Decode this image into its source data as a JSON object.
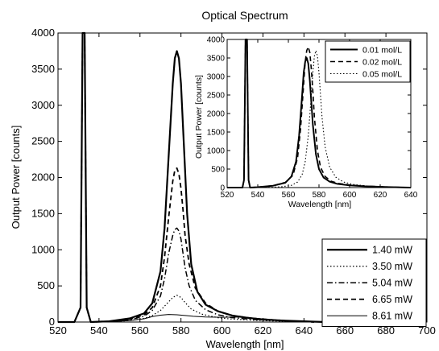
{
  "chart_data": [
    {
      "type": "line",
      "title": "Optical Spectrum",
      "xlabel": "Wavelength [nm]",
      "ylabel": "Output Power [counts]",
      "xlim": [
        520,
        700
      ],
      "ylim": [
        0,
        4000
      ],
      "xticks": [
        520,
        540,
        560,
        580,
        600,
        620,
        640,
        660,
        680,
        700
      ],
      "yticks": [
        0,
        500,
        1000,
        1500,
        2000,
        2500,
        3000,
        3500,
        4000
      ],
      "grid": false,
      "legend_position": "bottom-right",
      "series": [
        {
          "name": "1.40 mW",
          "style": "solid-thick",
          "x": [
            520,
            528,
            531,
            532,
            533,
            534,
            536,
            545,
            555,
            562,
            566,
            570,
            572,
            574,
            576,
            577,
            578,
            579,
            580,
            581,
            582,
            583,
            585,
            588,
            592,
            598,
            605,
            612,
            620,
            630,
            640,
            650
          ],
          "y": [
            0,
            0,
            200,
            4000,
            4000,
            200,
            0,
            10,
            50,
            120,
            260,
            700,
            1300,
            2300,
            3300,
            3650,
            3750,
            3650,
            3300,
            2700,
            2100,
            1500,
            800,
            420,
            240,
            150,
            90,
            60,
            35,
            20,
            10,
            0
          ]
        },
        {
          "name": "3.50 mW",
          "style": "dotted",
          "x": [
            520,
            528,
            531,
            532,
            533,
            534,
            536,
            545,
            555,
            562,
            566,
            570,
            574,
            576,
            578,
            580,
            582,
            585,
            590,
            598,
            605,
            615,
            630,
            645
          ],
          "y": [
            0,
            0,
            200,
            4000,
            4000,
            200,
            0,
            5,
            20,
            50,
            90,
            160,
            280,
            340,
            370,
            340,
            270,
            180,
            110,
            60,
            40,
            25,
            10,
            0
          ]
        },
        {
          "name": "5.04 mW",
          "style": "dash-dot",
          "x": [
            520,
            528,
            531,
            532,
            533,
            534,
            536,
            545,
            555,
            562,
            566,
            570,
            572,
            574,
            576,
            577,
            578,
            579,
            580,
            581,
            582,
            584,
            587,
            592,
            598,
            605,
            615,
            630,
            645
          ],
          "y": [
            0,
            0,
            200,
            4000,
            4000,
            200,
            0,
            5,
            30,
            80,
            160,
            360,
            600,
            950,
            1200,
            1280,
            1300,
            1260,
            1150,
            950,
            750,
            500,
            300,
            170,
            100,
            60,
            35,
            15,
            0
          ]
        },
        {
          "name": "6.65 mW",
          "style": "dashed",
          "x": [
            520,
            528,
            531,
            532,
            533,
            534,
            536,
            545,
            555,
            562,
            566,
            570,
            572,
            574,
            576,
            577,
            578,
            579,
            580,
            581,
            582,
            584,
            587,
            592,
            598,
            605,
            615,
            630,
            645
          ],
          "y": [
            0,
            0,
            200,
            4000,
            4000,
            200,
            0,
            8,
            40,
            100,
            200,
            500,
            900,
            1450,
            1950,
            2100,
            2130,
            2050,
            1850,
            1550,
            1200,
            800,
            470,
            260,
            150,
            90,
            50,
            20,
            0
          ]
        },
        {
          "name": "8.61 mW",
          "style": "solid-thin",
          "x": [
            520,
            528,
            531,
            532,
            533,
            534,
            536,
            545,
            555,
            562,
            566,
            570,
            574,
            578,
            582,
            586,
            592,
            600,
            608,
            615,
            625,
            640,
            660,
            680,
            700
          ],
          "y": [
            0,
            0,
            200,
            4000,
            4000,
            200,
            0,
            5,
            20,
            45,
            75,
            95,
            105,
            100,
            90,
            80,
            70,
            65,
            70,
            55,
            30,
            10,
            0,
            0,
            0
          ]
        }
      ]
    },
    {
      "type": "line",
      "title": "",
      "xlabel": "Wavelength [nm]",
      "ylabel": "Output Power [counts]",
      "xlim": [
        520,
        640
      ],
      "ylim": [
        0,
        4000
      ],
      "xticks": [
        520,
        540,
        560,
        580,
        600,
        620,
        640
      ],
      "yticks": [
        0,
        500,
        1000,
        1500,
        2000,
        2500,
        3000,
        3500,
        4000
      ],
      "grid": false,
      "legend_position": "top-right",
      "series": [
        {
          "name": "0.01 mol/L",
          "style": "solid-thick",
          "x": [
            520,
            530,
            531,
            532,
            533,
            534,
            535,
            540,
            550,
            558,
            562,
            565,
            567,
            569,
            570,
            571,
            572,
            573,
            574,
            575,
            576,
            578,
            580,
            583,
            587,
            592,
            600,
            610,
            625,
            640
          ],
          "y": [
            0,
            0,
            200,
            4000,
            4000,
            200,
            0,
            10,
            50,
            130,
            300,
            700,
            1400,
            2500,
            3100,
            3400,
            3500,
            3350,
            2900,
            2300,
            1700,
            900,
            500,
            270,
            160,
            100,
            60,
            35,
            15,
            0
          ]
        },
        {
          "name": "0.02 mol/L",
          "style": "dashed",
          "x": [
            520,
            530,
            531,
            532,
            533,
            534,
            535,
            540,
            550,
            558,
            563,
            566,
            568,
            570,
            571,
            572,
            573,
            574,
            575,
            576,
            577,
            579,
            581,
            584,
            588,
            593,
            600,
            610,
            625,
            640
          ],
          "y": [
            0,
            0,
            200,
            4000,
            4000,
            200,
            0,
            10,
            50,
            140,
            330,
            800,
            1600,
            2800,
            3400,
            3700,
            3800,
            3650,
            3200,
            2600,
            1900,
            1000,
            550,
            300,
            170,
            110,
            70,
            40,
            15,
            0
          ]
        },
        {
          "name": "0.05 mol/L",
          "style": "dotted",
          "x": [
            520,
            530,
            531,
            532,
            533,
            534,
            535,
            545,
            555,
            562,
            566,
            569,
            571,
            573,
            575,
            576,
            577,
            578,
            579,
            580,
            581,
            582,
            584,
            587,
            591,
            596,
            603,
            612,
            625,
            640
          ],
          "y": [
            0,
            0,
            200,
            4000,
            4000,
            200,
            0,
            5,
            20,
            60,
            150,
            350,
            700,
            1400,
            2500,
            3100,
            3550,
            3700,
            3550,
            3100,
            2500,
            1900,
            1100,
            550,
            280,
            150,
            80,
            40,
            15,
            0
          ]
        }
      ]
    }
  ]
}
